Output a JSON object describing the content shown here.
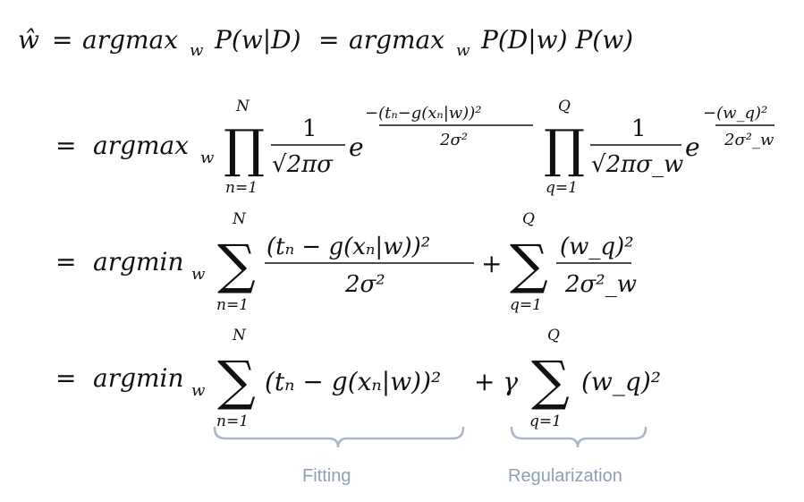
{
  "equation": {
    "line1": {
      "lhs": "ŵ",
      "eq": "=",
      "op1": "argmax",
      "op1_sub": "w",
      "term1": "P(w|D)",
      "eq2": "=",
      "op2": "argmax",
      "op2_sub": "w",
      "term2": "P(D|w) P(w)"
    },
    "line2": {
      "eq": "=",
      "op": "argmax",
      "op_sub": "w",
      "prod1": {
        "symbol": "∏",
        "upper": "N",
        "lower": "n=1"
      },
      "frac1": {
        "num": "1",
        "den": "√2πσ"
      },
      "exp1": {
        "base": "e",
        "num": "−(tₙ−g(xₙ|w))²",
        "den": "2σ²"
      },
      "prod2": {
        "symbol": "∏",
        "upper": "Q",
        "lower": "q=1"
      },
      "frac2": {
        "num": "1",
        "den": "√2πσ_w"
      },
      "exp2": {
        "base": "e",
        "num": "−(w_q)²",
        "den": "2σ²_w"
      }
    },
    "line3": {
      "eq": "=",
      "op": "argmin",
      "op_sub": "w",
      "sum1": {
        "symbol": "∑",
        "upper": "N",
        "lower": "n=1"
      },
      "frac1": {
        "num": "(tₙ − g(xₙ|w))²",
        "den": "2σ²"
      },
      "plus": "+",
      "sum2": {
        "symbol": "∑",
        "upper": "Q",
        "lower": "q=1"
      },
      "frac2": {
        "num": "(w_q)²",
        "den": "2σ²_w"
      }
    },
    "line4": {
      "eq": "=",
      "op": "argmin",
      "op_sub": "w",
      "sum1": {
        "symbol": "∑",
        "upper": "N",
        "lower": "n=1"
      },
      "term1": "(tₙ − g(xₙ|w))²",
      "plus": "+ γ",
      "sum2": {
        "symbol": "∑",
        "upper": "Q",
        "lower": "q=1"
      },
      "term2": "(w_q)²"
    }
  },
  "annotations": {
    "fitting": "Fitting",
    "regularization": "Regularization"
  },
  "colors": {
    "text": "#111111",
    "annotation": "#8da0b8",
    "brace": "#a9b7c8",
    "background": "#ffffff"
  }
}
